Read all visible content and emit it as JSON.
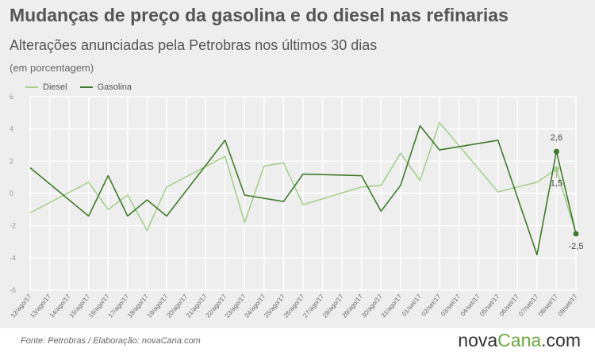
{
  "header": {
    "title": "Mudanças de preço da gasolina e do diesel nas refinarias",
    "subtitle": "Alterações anunciadas pela Petrobras nos últimos 30 dias",
    "unit": "(em porcentagem)"
  },
  "footer": {
    "source": "Fonte:  Petrobras  / Elaboração:  novaCana.com",
    "brand_main": "nova",
    "brand_accent": "Cana",
    "brand_suffix": ".com"
  },
  "colors": {
    "diesel": "#a6d08c",
    "gasolina": "#3f7a2a",
    "grid": "#ffffff",
    "tick": "#999999"
  },
  "chart_data": {
    "type": "line",
    "categories": [
      "12/ago/17",
      "13/ago/17",
      "14/ago/17",
      "15/ago/17",
      "16/ago/17",
      "17/ago/17",
      "18/ago/17",
      "19/ago/17",
      "20/ago/17",
      "21/ago/17",
      "22/ago/17",
      "23/ago/17",
      "24/ago/17",
      "25/ago/17",
      "26/ago/17",
      "27/ago/17",
      "28/ago/17",
      "29/ago/17",
      "30/ago/17",
      "31/ago/17",
      "01/set/17",
      "02/set/17",
      "03/set/17",
      "04/set/17",
      "05/set/17",
      "06/set/17",
      "07/set/17",
      "08/set/17",
      "09/set/17"
    ],
    "series": [
      {
        "name": "Diesel",
        "values": [
          -1.2,
          null,
          null,
          0.7,
          -1.0,
          -0.1,
          -2.3,
          0.4,
          null,
          null,
          2.3,
          -1.8,
          1.7,
          1.9,
          -0.7,
          null,
          null,
          0.4,
          0.5,
          2.5,
          0.8,
          4.4,
          null,
          null,
          0.1,
          null,
          0.7,
          1.5,
          -2.5
        ]
      },
      {
        "name": "Gasolina",
        "values": [
          1.6,
          null,
          null,
          -1.4,
          1.1,
          -1.4,
          -0.4,
          -1.4,
          null,
          null,
          3.3,
          -0.1,
          null,
          -0.5,
          1.2,
          null,
          null,
          1.1,
          -1.1,
          0.5,
          4.2,
          2.7,
          null,
          null,
          3.3,
          null,
          -3.8,
          2.6,
          -2.5
        ]
      }
    ],
    "annotations": [
      {
        "category": "08/set/17",
        "value": 2.6,
        "label": "2,6",
        "series": "Gasolina"
      },
      {
        "category": "08/set/17",
        "value": 1.5,
        "label": "1,5",
        "series": "Diesel"
      },
      {
        "category": "09/set/17",
        "value": -2.5,
        "label": "-2,5",
        "series": "Gasolina"
      }
    ],
    "yticks": [
      "-6",
      "-4",
      "-2",
      "0",
      "2",
      "4",
      "6"
    ],
    "ylim": [
      -6,
      6
    ],
    "grid": true,
    "legend": "top-left"
  }
}
